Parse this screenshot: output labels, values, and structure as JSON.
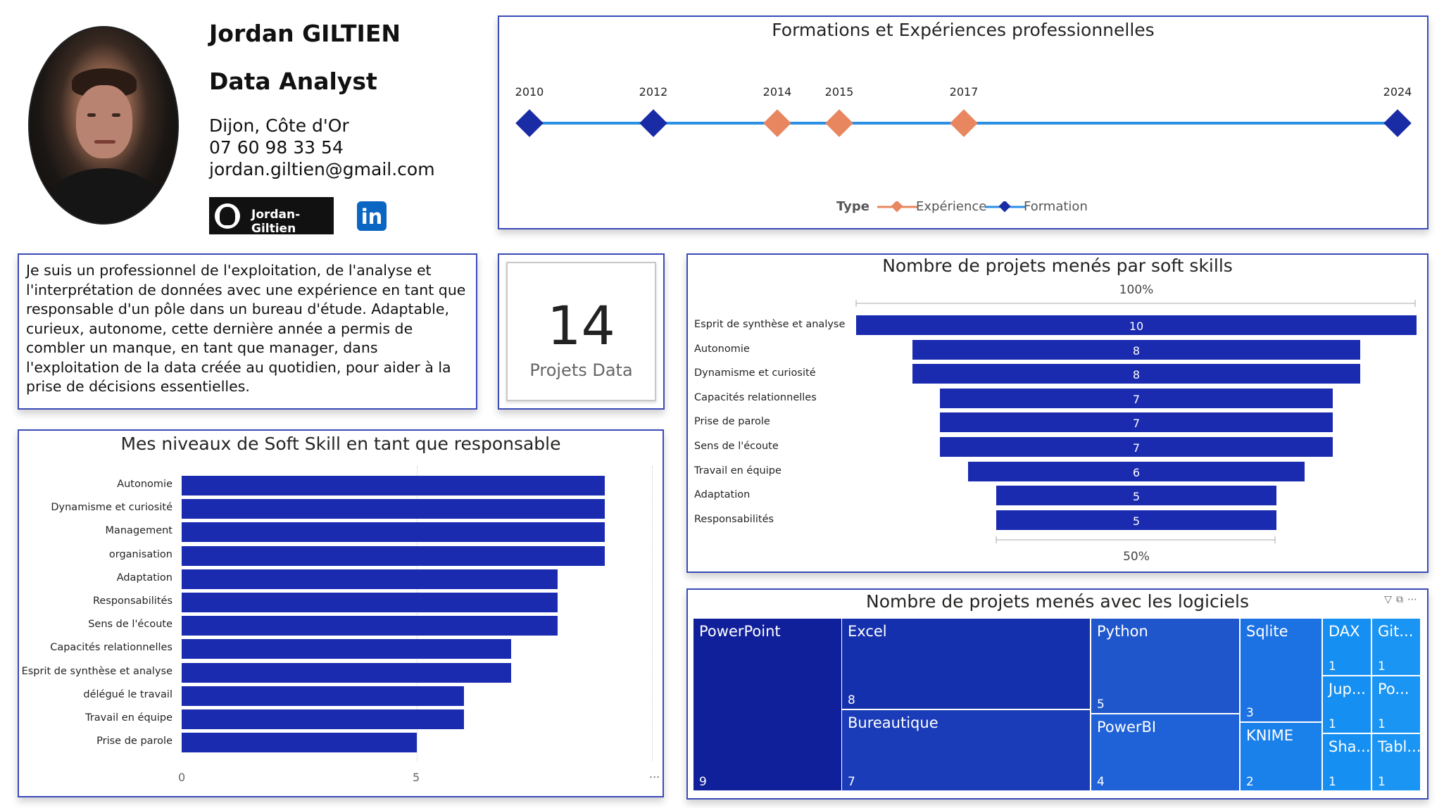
{
  "profile": {
    "name": "Jordan GILTIEN",
    "role": "Data Analyst",
    "location": "Dijon, Côte d'Or",
    "phone": "07 60 98 33 54",
    "email": "jordan.giltien@gmail.com",
    "github_label": "Jordan-Giltien",
    "linkedin_label": "in"
  },
  "timeline": {
    "title": "Formations et Expériences professionnelles",
    "legend_title": "Type",
    "legend": [
      "Expérience",
      "Formation"
    ],
    "colors": {
      "Expérience": "#e8875f",
      "Formation": "#1a2ba6",
      "line": "#2c8fe6"
    },
    "points": [
      {
        "year": "2010",
        "type": "Formation"
      },
      {
        "year": "2012",
        "type": "Formation"
      },
      {
        "year": "2014",
        "type": "Expérience"
      },
      {
        "year": "2015",
        "type": "Expérience"
      },
      {
        "year": "2017",
        "type": "Expérience"
      },
      {
        "year": "2024",
        "type": "Formation"
      }
    ]
  },
  "about": {
    "text": "Je suis un professionnel de l'exploitation, de l'analyse et l'interprétation de données avec une expérience en tant que responsable d'un pôle dans un bureau d'étude. Adaptable, curieux, autonome, cette dernière année a permis de combler un manque, en tant que manager, dans l'exploitation de la data créée au quotidien, pour aider à la prise de décisions essentielles."
  },
  "kpi": {
    "value": "14",
    "label": "Projets Data"
  },
  "chart_data": [
    {
      "type": "bar",
      "title": "Mes niveaux de Soft Skill en tant que responsable",
      "categories": [
        "Autonomie",
        "Dynamisme et curiosité",
        "Management",
        "organisation",
        "Adaptation",
        "Responsabilités",
        "Sens de l'écoute",
        "Capacités relationnelles",
        "Esprit de synthèse et analyse",
        "délégué le travail",
        "Travail en équipe",
        "Prise de parole"
      ],
      "values": [
        9,
        9,
        9,
        9,
        8,
        8,
        8,
        7,
        7,
        6,
        6,
        5
      ],
      "xticks": [
        "0",
        "5"
      ],
      "xlim": [
        0,
        10
      ],
      "more": "...",
      "color": "#1a2bb0"
    },
    {
      "type": "bar",
      "title": "Nombre de projets menés par soft skills",
      "categories": [
        "Esprit de synthèse et analyse",
        "Autonomie",
        "Dynamisme et curiosité",
        "Capacités relationnelles",
        "Prise de parole",
        "Sens de l'écoute",
        "Travail en équipe",
        "Adaptation",
        "Responsabilités"
      ],
      "values": [
        10,
        8,
        8,
        7,
        7,
        7,
        6,
        5,
        5
      ],
      "top_pct": "100%",
      "bottom_pct": "50%",
      "color": "#1a2bb0"
    },
    {
      "type": "treemap",
      "title": "Nombre de projets menés avec les logiciels",
      "items": [
        {
          "name": "PowerPoint",
          "value": 9,
          "color": "#101f9a"
        },
        {
          "name": "Excel",
          "value": 8,
          "color": "#1530ad"
        },
        {
          "name": "Bureautique",
          "value": 7,
          "color": "#1a3cb8"
        },
        {
          "name": "Python",
          "value": 5,
          "color": "#1f56cc"
        },
        {
          "name": "PowerBI",
          "value": 4,
          "color": "#1f61d6"
        },
        {
          "name": "Sqlite",
          "value": 3,
          "color": "#1c72e2"
        },
        {
          "name": "KNIME",
          "value": 2,
          "color": "#1a80ea"
        },
        {
          "name": "DAX",
          "value": 1,
          "color": "#168ff2"
        },
        {
          "name": "Git...",
          "value": 1,
          "color": "#1a95f4"
        },
        {
          "name": "Jup...",
          "value": 1,
          "color": "#168ff2"
        },
        {
          "name": "Po...",
          "value": 1,
          "color": "#1a95f4"
        },
        {
          "name": "Sha...",
          "value": 1,
          "color": "#168ff2"
        },
        {
          "name": "Tabl...",
          "value": 1,
          "color": "#1a95f4"
        }
      ]
    }
  ],
  "icons": {
    "filter": "filter-icon",
    "expand": "focus-mode-icon",
    "more": "more-options-icon"
  }
}
